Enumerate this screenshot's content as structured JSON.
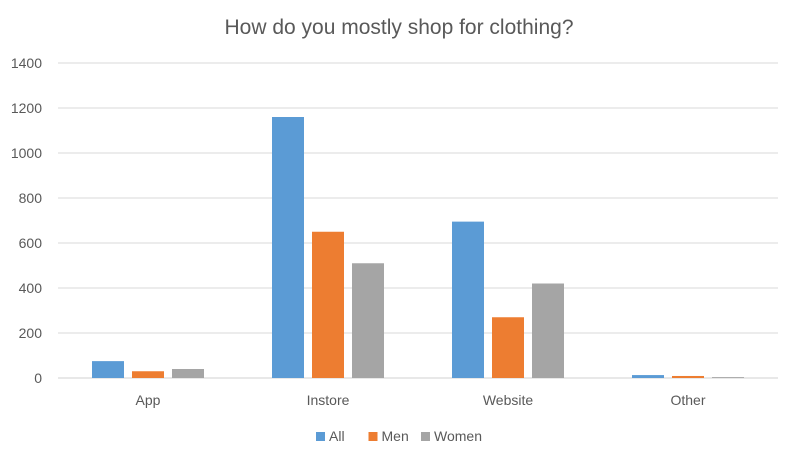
{
  "chart_data": {
    "type": "bar",
    "title": "How do you mostly shop for clothing?",
    "xlabel": "",
    "ylabel": "",
    "categories": [
      "App",
      "Instore",
      "Website",
      "Other"
    ],
    "series": [
      {
        "name": "All",
        "color": "#5b9bd5",
        "values": [
          75,
          1160,
          695,
          13
        ]
      },
      {
        "name": "Men",
        "color": "#ed7d31",
        "values": [
          30,
          650,
          270,
          9
        ]
      },
      {
        "name": "Women",
        "color": "#a5a5a5",
        "values": [
          40,
          510,
          420,
          4
        ]
      }
    ],
    "ylim": [
      0,
      1400
    ],
    "yticks": [
      0,
      200,
      400,
      600,
      800,
      1000,
      1200,
      1400
    ],
    "grid": true,
    "legend": "bottom"
  }
}
